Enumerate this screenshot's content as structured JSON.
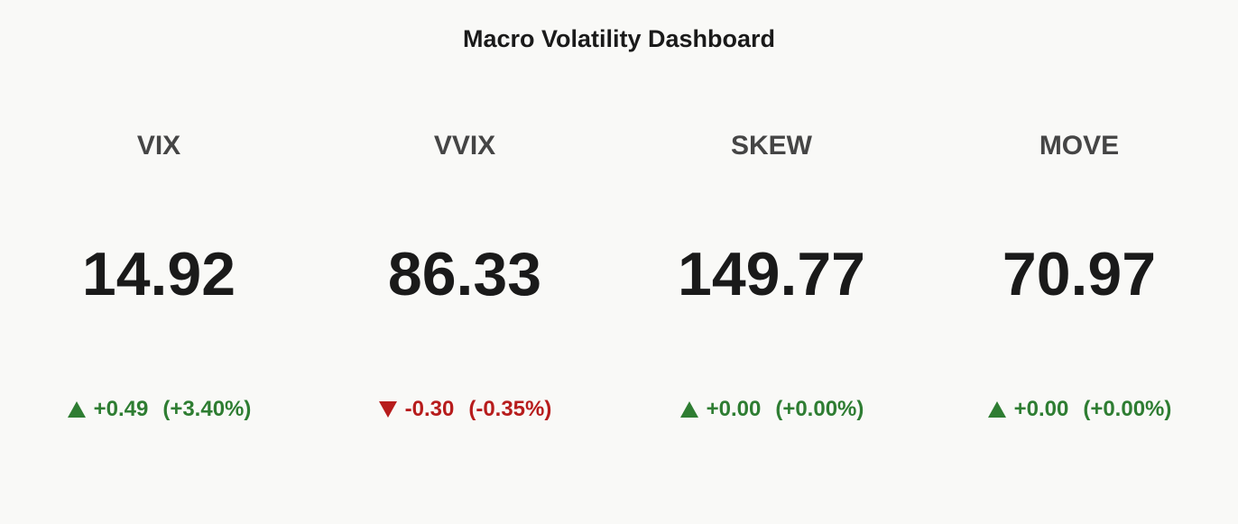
{
  "title": "Macro Volatility Dashboard",
  "increasing_color": "#2e7d32",
  "decreasing_color": "#b71c1c",
  "indicators": [
    {
      "label": "VIX",
      "value": 14.92,
      "delta": {
        "value": 0.49,
        "label": "+0.49"
      },
      "delta_pct": {
        "value": 3.4,
        "label": "(+3.40%)"
      }
    },
    {
      "label": "VVIX",
      "value": 86.33,
      "delta": {
        "value": -0.3,
        "label": "-0.30"
      },
      "delta_pct": {
        "value": -0.35,
        "label": "(-0.35%)"
      }
    },
    {
      "label": "SKEW",
      "value": 149.77,
      "delta": {
        "value": 0.0,
        "label": "+0.00"
      },
      "delta_pct": {
        "value": 0.0,
        "label": "(+0.00%)"
      }
    },
    {
      "label": "MOVE",
      "value": 70.97,
      "delta": {
        "value": 0.0,
        "label": "+0.00"
      },
      "delta_pct": {
        "value": 0.0,
        "label": "(+0.00%)"
      }
    }
  ]
}
